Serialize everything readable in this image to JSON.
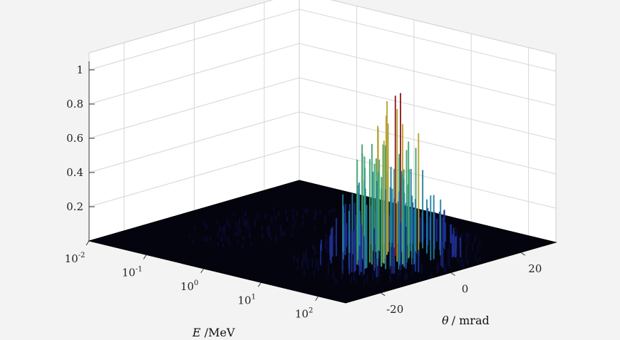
{
  "chart_data": {
    "type": "surface",
    "title": "",
    "zlabel": "",
    "x_axis": {
      "label_symbol": "E",
      "label_unit": " /MeV",
      "scale": "log",
      "range": [
        0.01,
        300
      ],
      "tick_labels": [
        {
          "base": "10",
          "exp": "-2"
        },
        {
          "base": "10",
          "exp": "-1"
        },
        {
          "base": "10",
          "exp": "0"
        },
        {
          "base": "10",
          "exp": "1"
        },
        {
          "base": "10",
          "exp": "2"
        }
      ]
    },
    "y_axis": {
      "label_symbol": "θ",
      "label_unit": "/ mrad",
      "range": [
        -30,
        30
      ],
      "tick_labels": [
        "-20",
        "0",
        "20"
      ]
    },
    "z_axis": {
      "range": [
        0,
        1
      ],
      "tick_labels": [
        "0.2",
        "0.4",
        "0.6",
        "0.8",
        "1"
      ]
    },
    "grid": true,
    "colormap": [
      "#0a0a2e",
      "#1f2f8f",
      "#1f7fa0",
      "#3da36f",
      "#b7a030",
      "#8b1a1a"
    ],
    "peak": {
      "E_log10": 1.4,
      "theta": 0,
      "height": 1.0
    }
  }
}
